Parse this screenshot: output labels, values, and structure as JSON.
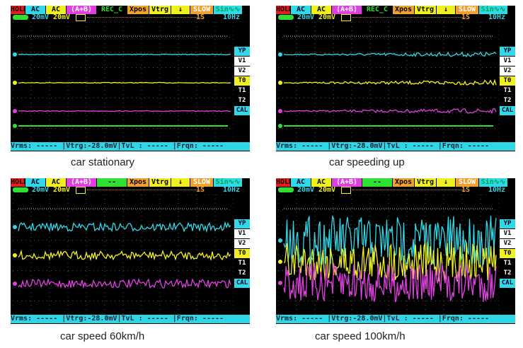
{
  "panels": [
    {
      "caption": "car stationary",
      "top": [
        "HOLD",
        "AC",
        "AC",
        "(A+B)",
        "REC_C",
        "Xpos",
        "Vtrg",
        "↓",
        "SLOW",
        "Sin∿∿"
      ],
      "ch1": "20mV",
      "ch2": "20mV",
      "timebase": "1S",
      "freq": "10Hz",
      "side": [
        "YP",
        "V1",
        "V2",
        "T0",
        "T1",
        "T2",
        "CAL"
      ],
      "bottom": "Vrms: ----- |Vtrg:-28.0mV|TvL : ----- |Frqn: -----",
      "noise": 0.5
    },
    {
      "caption": "car speeding up",
      "top": [
        "HOLD",
        "AC",
        "AC",
        "(A+B)",
        "REC_C",
        "Xpos",
        "Vtrg",
        "↓",
        "SLOW",
        "Sin∿∿"
      ],
      "ch1": "20mV",
      "ch2": "20mV",
      "timebase": "1S",
      "freq": "10Hz",
      "side": [
        "YP",
        "V1",
        "V2",
        "T0",
        "T1",
        "T2",
        "CAL"
      ],
      "bottom": "Vrms: ----- |Vtrg:-28.0mV|TvL : ----- |Frqn: -----",
      "noise": 2
    },
    {
      "caption": "car speed 60km/h",
      "top": [
        "HOLD",
        "AC",
        "AC",
        "(A+B)",
        "--",
        "Xpos",
        "Vtrg",
        "↓",
        "SLOW",
        "Sin∿∿"
      ],
      "ch1": "20mV",
      "ch2": "20mV",
      "timebase": "1S",
      "freq": "10Hz",
      "side": [
        "YP",
        "V1",
        "V2",
        "T0",
        "T1",
        "T2",
        "CAL"
      ],
      "bottom": "Vrms: ----- |Vtrg:-28.0mV|TvL : ----- |Frqn: -----",
      "noise": 6
    },
    {
      "caption": "car speed 100km/h",
      "top": [
        "HOLD",
        "AC",
        "AC",
        "(A+B)",
        "--",
        "Xpos",
        "Vtrg",
        "↓",
        "SLOW",
        "Sin∿∿"
      ],
      "ch1": "20mV",
      "ch2": "20mV",
      "timebase": "1S",
      "freq": "10Hz",
      "side": [
        "YP",
        "V1",
        "V2",
        "T0",
        "T1",
        "T2",
        "CAL"
      ],
      "bottom": "Vrms: ----- |Vtrg:-28.0mV|TvL : ----- |Frqn: -----",
      "noise": 14
    }
  ],
  "colors": {
    "hold": "#e02020",
    "cyan": "#30d8e8",
    "yellow": "#f0f020",
    "magenta": "#e040e0",
    "green": "#30e030",
    "orange": "#f0a030"
  }
}
